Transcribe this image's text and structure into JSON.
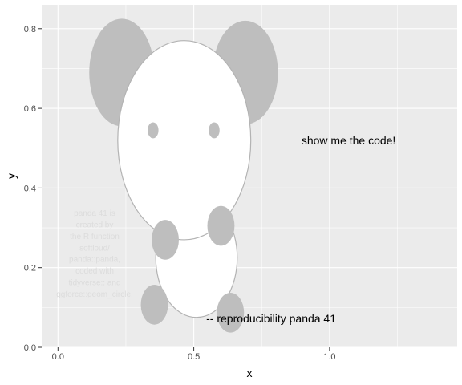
{
  "chart_data": {
    "type": "scatter",
    "xlabel": "x",
    "ylabel": "y",
    "xlim": [
      -0.06,
      1.47
    ],
    "ylim": [
      0,
      0.86
    ],
    "x_ticks": [
      0.0,
      0.5,
      1.0
    ],
    "x_tick_labels": [
      "0.0",
      "0.5",
      "1.0"
    ],
    "y_ticks": [
      0.0,
      0.2,
      0.4,
      0.6,
      0.8
    ],
    "y_tick_labels": [
      "0.0",
      "0.2",
      "0.4",
      "0.6",
      "0.8"
    ],
    "grid": true,
    "colors": {
      "panel": "#ebebeb",
      "grid_major": "#ffffff",
      "grey_fill": "#bebebe",
      "white_fill": "#ffffff",
      "outline": "#b3b3b3",
      "watermark": "#dcdcdc"
    },
    "ellipses": [
      {
        "name": "left-ear",
        "x0": 0.235,
        "y0": 0.69,
        "a": 0.12,
        "b": 0.135,
        "fill": "grey"
      },
      {
        "name": "right-ear",
        "x0": 0.69,
        "y0": 0.69,
        "a": 0.12,
        "b": 0.13,
        "fill": "grey"
      },
      {
        "name": "body",
        "x0": 0.51,
        "y0": 0.225,
        "a": 0.15,
        "b": 0.15,
        "fill": "white"
      },
      {
        "name": "head",
        "x0": 0.465,
        "y0": 0.52,
        "a": 0.245,
        "b": 0.25,
        "fill": "white"
      },
      {
        "name": "left-eye",
        "x0": 0.35,
        "y0": 0.545,
        "a": 0.02,
        "b": 0.02,
        "fill": "grey"
      },
      {
        "name": "right-eye",
        "x0": 0.575,
        "y0": 0.545,
        "a": 0.02,
        "b": 0.02,
        "fill": "grey"
      },
      {
        "name": "left-arm",
        "x0": 0.395,
        "y0": 0.27,
        "a": 0.05,
        "b": 0.05,
        "fill": "grey"
      },
      {
        "name": "right-arm",
        "x0": 0.6,
        "y0": 0.305,
        "a": 0.05,
        "b": 0.05,
        "fill": "grey"
      },
      {
        "name": "left-leg",
        "x0": 0.355,
        "y0": 0.107,
        "a": 0.05,
        "b": 0.05,
        "fill": "grey"
      },
      {
        "name": "right-leg",
        "x0": 0.635,
        "y0": 0.087,
        "a": 0.05,
        "b": 0.05,
        "fill": "grey"
      }
    ],
    "annotations": [
      {
        "text": "show me the code!",
        "x": 1.07,
        "y": 0.52
      },
      {
        "text": "-- reproducibility panda 41",
        "x": 0.785,
        "y": 0.073
      }
    ],
    "watermark": {
      "x": 0.135,
      "y_top": 0.33,
      "line_step": 0.029,
      "lines": [
        "panda 41 is",
        "created by",
        "the R function",
        "softloud/",
        "panda::panda,",
        "coded with",
        "tidyverse:: and",
        "ggforce::geom_circle."
      ]
    }
  }
}
